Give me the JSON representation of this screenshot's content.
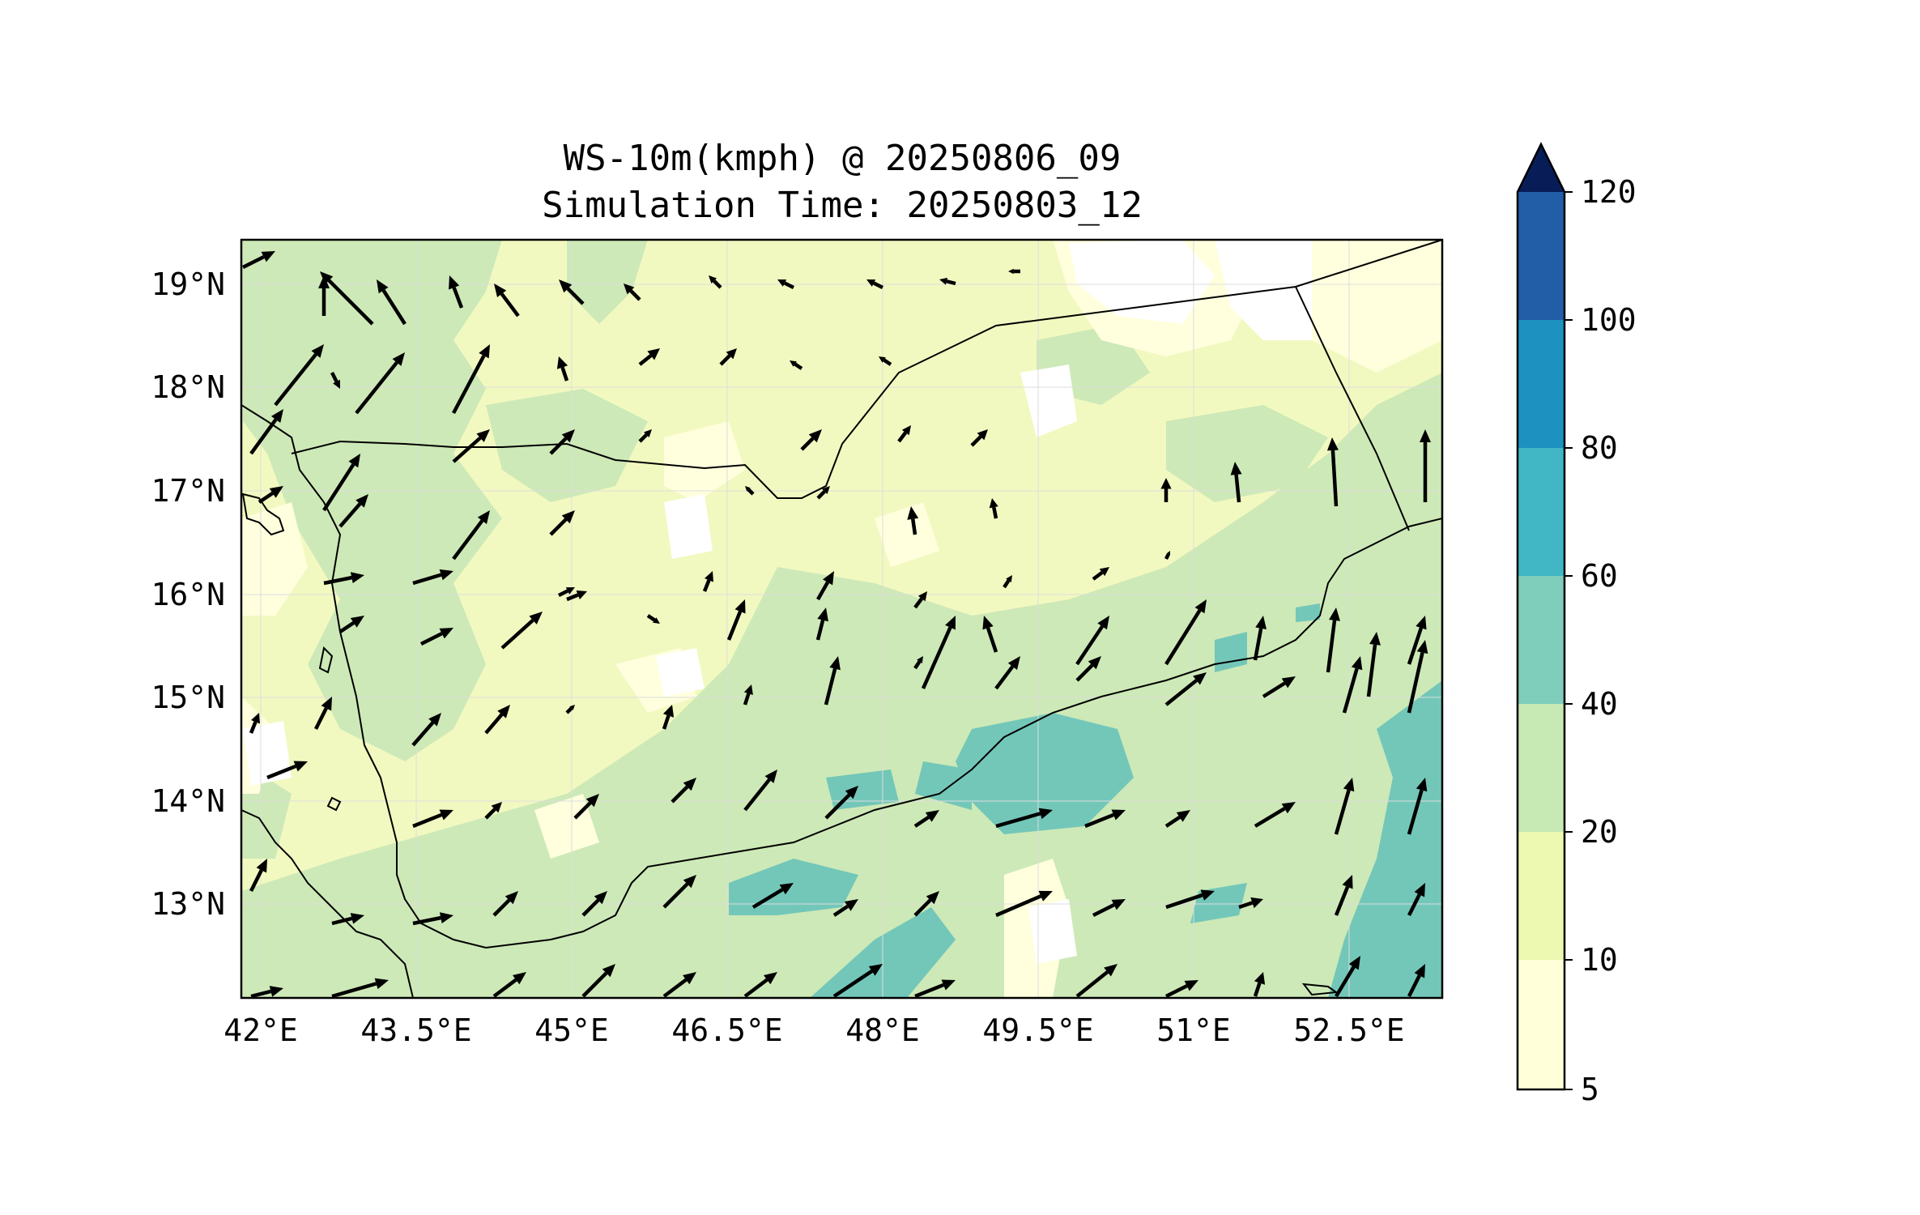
{
  "figure": {
    "title_line1": "WS-10m(kmph) @ 20250806_09",
    "title_line2": "Simulation Time: 20250803_12"
  },
  "map": {
    "lon_range": [
      41.9,
      53.8
    ],
    "lat_range": [
      12.1,
      19.45
    ],
    "lon_ticks": [
      "42°E",
      "43.5°E",
      "45°E",
      "46.5°E",
      "48°E",
      "49.5°E",
      "51°E",
      "52.5°E"
    ],
    "lat_ticks": [
      "19°N",
      "18°N",
      "17°N",
      "16°N",
      "15°N",
      "14°N",
      "13°N"
    ],
    "grid": true,
    "variable": "10 m wind speed with wind vectors"
  },
  "colorbar": {
    "labels": [
      "120",
      "100",
      "80",
      "60",
      "40",
      "20",
      "10",
      "5"
    ],
    "extend": "max",
    "colors": [
      "#ffffd9",
      "#edf8b1",
      "#c7e9b4",
      "#7fcdbb",
      "#41b6c4",
      "#1d91c0",
      "#225ea8",
      "#253494",
      "#081d58"
    ]
  }
}
